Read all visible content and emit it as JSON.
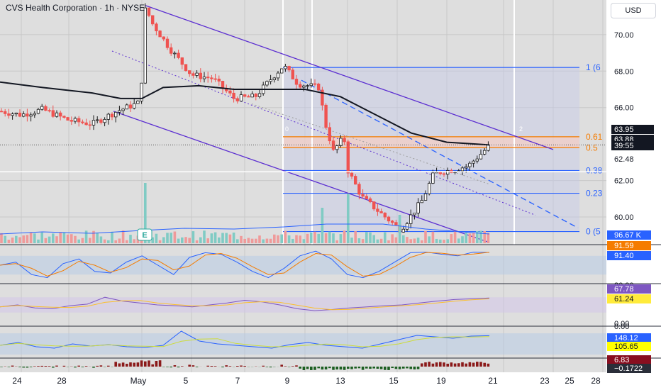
{
  "header": {
    "title": "CVS Health Corporation · 1h · NYSE",
    "currency": "USD"
  },
  "chart_data": {
    "type": "candlestick",
    "price_axis": {
      "ticks": [
        "70.00",
        "68.00",
        "66.00",
        "62.00",
        "60.00"
      ],
      "min": 58.6,
      "max": 71.9
    },
    "time_axis": {
      "labels": [
        "24",
        "28",
        "May",
        "5",
        "7",
        "9",
        "13",
        "15",
        "19",
        "21",
        "23",
        "25",
        "28"
      ]
    },
    "last_price_labels": [
      {
        "value": "63.95",
        "bg": "#131722",
        "fg": "#ffffff"
      },
      {
        "value": "63.88",
        "bg": "#131722",
        "fg": "#ffffff"
      },
      {
        "value": "39:55",
        "bg": "#131722",
        "fg": "#ffffff"
      },
      {
        "value": "62.48",
        "bg": "#ffffff",
        "fg": "#131722"
      }
    ],
    "fibonacci": {
      "levels": [
        {
          "label": "1 (6",
          "value": 68.2,
          "color": "#2962ff"
        },
        {
          "label": "0.61",
          "value": 64.4,
          "color": "#f57c00"
        },
        {
          "label": "0.5",
          "value": 63.8,
          "color": "#f57c00"
        },
        {
          "label": "0.38",
          "value": 62.55,
          "color": "#2962ff"
        },
        {
          "label": "0.23",
          "value": 61.3,
          "color": "#2962ff"
        },
        {
          "label": "0 (5",
          "value": 59.2,
          "color": "#2962ff"
        }
      ],
      "anchor_labels": [
        "0",
        "2"
      ]
    },
    "ma_line_color": "#131722",
    "up_color": "#26a69a",
    "down_color": "#ef5350",
    "channel_color": "#5b2ed1",
    "trend_color": "#2962ff",
    "earnings_marker": "E",
    "volume": {
      "label": "96.67 K",
      "label_bg": "#2962ff"
    },
    "indicators": [
      {
        "name": "stoch",
        "values": [
          {
            "value": "91.59",
            "bg": "#f57c00"
          },
          {
            "value": "91.40",
            "bg": "#2962ff"
          }
        ]
      },
      {
        "name": "rsi",
        "axis_ticks": [
          "80.00",
          "0.00"
        ],
        "values": [
          {
            "value": "67.78",
            "bg": "#7e57c2"
          },
          {
            "value": "61.24",
            "bg": "#ffeb3b",
            "fg": "#131722"
          }
        ]
      },
      {
        "name": "adx",
        "axis_ticks": [
          "0.00"
        ],
        "values": [
          {
            "value": "148.12",
            "bg": "#2962ff"
          },
          {
            "value": "105.65",
            "bg": "#ffff00",
            "fg": "#131722"
          }
        ]
      },
      {
        "name": "macd",
        "values": [
          {
            "value": "6.83",
            "bg": "#880e1f"
          },
          {
            "value": "−0.1722",
            "bg": "#2a2e39"
          }
        ]
      }
    ]
  }
}
